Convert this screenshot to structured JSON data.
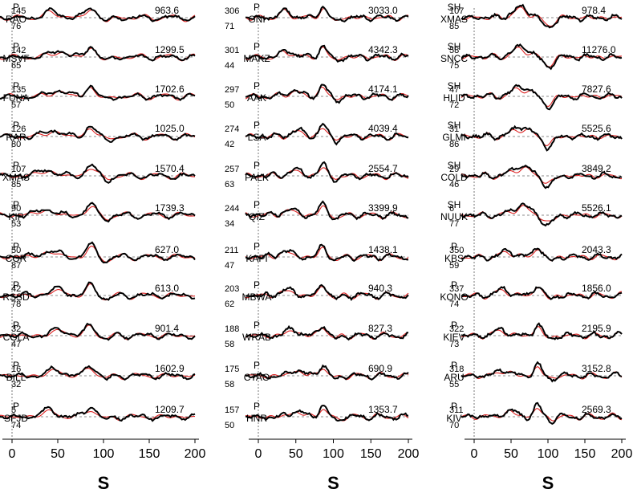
{
  "chart_data": [
    {
      "type": "line",
      "panel": "left",
      "xlabel": "S",
      "xlim": [
        0,
        200
      ],
      "x_ticks": [
        "0",
        "50",
        "100",
        "150",
        "200"
      ],
      "series_colors": {
        "observed": "#000000",
        "synthetic": "#dd2222"
      },
      "traces": [
        {
          "phase": "P",
          "station": "RAO",
          "azimuth": "145",
          "distance": "76",
          "amplitude": "963.6"
        },
        {
          "phase": "P",
          "station": "MSVF",
          "azimuth": "142",
          "distance": "65",
          "amplitude": "1299.5"
        },
        {
          "phase": "P",
          "station": "FUNA",
          "azimuth": "135",
          "distance": "57",
          "amplitude": "1702.6"
        },
        {
          "phase": "P",
          "station": "RAR",
          "azimuth": "126",
          "distance": "80",
          "amplitude": "1025.0"
        },
        {
          "phase": "P",
          "station": "XMAS",
          "azimuth": "107",
          "distance": "85",
          "amplitude": "1570.4"
        },
        {
          "phase": "P",
          "station": "KIP",
          "azimuth": "90",
          "distance": "53",
          "amplitude": "1739.3"
        },
        {
          "phase": "P",
          "station": "COR",
          "azimuth": "50",
          "distance": "87",
          "amplitude": "627.0"
        },
        {
          "phase": "P",
          "station": "RSSD",
          "azimuth": "42",
          "distance": "78",
          "amplitude": "613.0"
        },
        {
          "phase": "P",
          "station": "COLA",
          "azimuth": "32",
          "distance": "47",
          "amplitude": "901.4"
        },
        {
          "phase": "P",
          "station": "BILL",
          "azimuth": "16",
          "distance": "32",
          "amplitude": "1602.9"
        },
        {
          "phase": "P",
          "station": "SFJD",
          "azimuth": "5",
          "distance": "74",
          "amplitude": "1209.7"
        }
      ]
    },
    {
      "type": "line",
      "panel": "middle",
      "xlabel": "S",
      "xlim": [
        0,
        200
      ],
      "x_ticks": [
        "0",
        "50",
        "100",
        "150",
        "200"
      ],
      "series_colors": {
        "observed": "#000000",
        "synthetic": "#dd2222"
      },
      "traces": [
        {
          "phase": "P",
          "station": "GNI",
          "azimuth": "306",
          "distance": "71",
          "amplitude": "3033.0"
        },
        {
          "phase": "P",
          "station": "MAKZ",
          "azimuth": "301",
          "distance": "44",
          "amplitude": "4342.3"
        },
        {
          "phase": "P",
          "station": "AAK",
          "azimuth": "297",
          "distance": "50",
          "amplitude": "4174.1"
        },
        {
          "phase": "P",
          "station": "LSA",
          "azimuth": "274",
          "distance": "42",
          "amplitude": "4039.4"
        },
        {
          "phase": "P",
          "station": "PALK",
          "azimuth": "257",
          "distance": "63",
          "amplitude": "2554.7"
        },
        {
          "phase": "P",
          "station": "QIZ",
          "azimuth": "244",
          "distance": "34",
          "amplitude": "3399.9"
        },
        {
          "phase": "P",
          "station": "KAPI",
          "azimuth": "211",
          "distance": "47",
          "amplitude": "1438.1"
        },
        {
          "phase": "P",
          "station": "MBWA",
          "azimuth": "203",
          "distance": "62",
          "amplitude": "940.3"
        },
        {
          "phase": "P",
          "station": "WRAB",
          "azimuth": "188",
          "distance": "58",
          "amplitude": "827.3"
        },
        {
          "phase": "P",
          "station": "CTAO",
          "azimuth": "175",
          "distance": "58",
          "amplitude": "690.9"
        },
        {
          "phase": "P",
          "station": "HNR",
          "azimuth": "157",
          "distance": "50",
          "amplitude": "1353.7"
        }
      ]
    },
    {
      "type": "line",
      "panel": "right",
      "xlabel": "S",
      "xlim": [
        0,
        200
      ],
      "x_ticks": [
        "0",
        "50",
        "100",
        "150",
        "200"
      ],
      "series_colors": {
        "observed": "#000000",
        "synthetic": "#dd2222"
      },
      "traces": [
        {
          "phase": "SH",
          "station": "XMAS",
          "azimuth": "107",
          "distance": "85",
          "amplitude": "978.4"
        },
        {
          "phase": "SH",
          "station": "SNCC",
          "azimuth": "58",
          "distance": "75",
          "amplitude": "11276.0"
        },
        {
          "phase": "SH",
          "station": "HLID",
          "azimuth": "47",
          "distance": "72",
          "amplitude": "7827.6"
        },
        {
          "phase": "SH",
          "station": "GLMI",
          "azimuth": "31",
          "distance": "86",
          "amplitude": "5525.6"
        },
        {
          "phase": "SH",
          "station": "COLD",
          "azimuth": "29",
          "distance": "46",
          "amplitude": "3849.2"
        },
        {
          "phase": "SH",
          "station": "NUUK",
          "azimuth": "6",
          "distance": "77",
          "amplitude": "5526.1"
        },
        {
          "phase": "P",
          "station": "KBS",
          "azimuth": "350",
          "distance": "59",
          "amplitude": "2043.3"
        },
        {
          "phase": "P",
          "station": "KONO",
          "azimuth": "337",
          "distance": "74",
          "amplitude": "1856.0"
        },
        {
          "phase": "P",
          "station": "KIEV",
          "azimuth": "322",
          "distance": "73",
          "amplitude": "2195.9"
        },
        {
          "phase": "P",
          "station": "ARU",
          "azimuth": "318",
          "distance": "55",
          "amplitude": "3152.8"
        },
        {
          "phase": "P",
          "station": "KIV",
          "azimuth": "311",
          "distance": "70",
          "amplitude": "2569.3"
        }
      ]
    }
  ]
}
